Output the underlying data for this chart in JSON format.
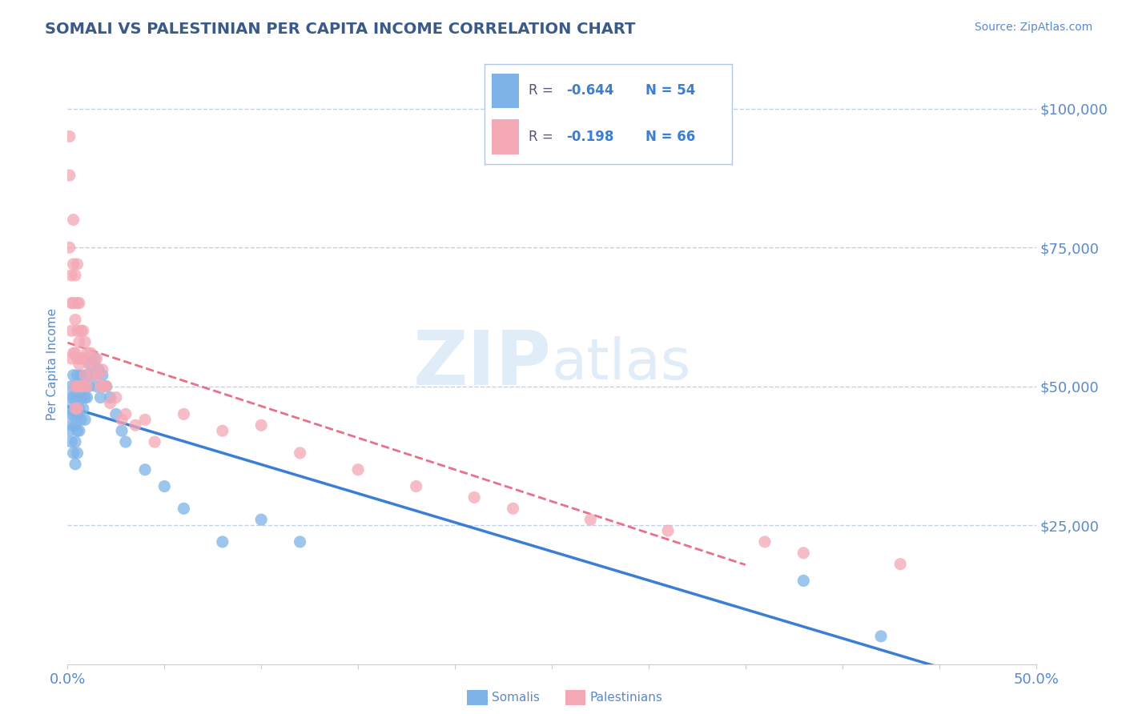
{
  "title": "SOMALI VS PALESTINIAN PER CAPITA INCOME CORRELATION CHART",
  "source_text": "Source: ZipAtlas.com",
  "ylabel": "Per Capita Income",
  "xlim": [
    0.0,
    0.5
  ],
  "ylim": [
    0,
    108000
  ],
  "yticks": [
    25000,
    50000,
    75000,
    100000
  ],
  "ytick_labels": [
    "$25,000",
    "$50,000",
    "$75,000",
    "$100,000"
  ],
  "xtick_labels_edge": [
    "0.0%",
    "50.0%"
  ],
  "somali_color": "#7eb3e8",
  "palestinian_color": "#f4a7b5",
  "somali_line_color": "#3a7fd5",
  "palestinian_line_color": "#e8708a",
  "title_color": "#3a5a8a",
  "axis_color": "#5a8ac8",
  "tick_color": "#5a8ac8",
  "grid_color": "#c0d0e8",
  "background_color": "#ffffff",
  "somali_x": [
    0.001,
    0.001,
    0.001,
    0.002,
    0.002,
    0.002,
    0.002,
    0.003,
    0.003,
    0.003,
    0.003,
    0.004,
    0.004,
    0.004,
    0.004,
    0.004,
    0.005,
    0.005,
    0.005,
    0.005,
    0.005,
    0.006,
    0.006,
    0.006,
    0.007,
    0.007,
    0.007,
    0.008,
    0.008,
    0.009,
    0.009,
    0.01,
    0.01,
    0.011,
    0.012,
    0.013,
    0.014,
    0.015,
    0.016,
    0.017,
    0.018,
    0.02,
    0.022,
    0.025,
    0.028,
    0.03,
    0.04,
    0.05,
    0.06,
    0.08,
    0.1,
    0.12,
    0.38,
    0.42
  ],
  "somali_y": [
    48000,
    45000,
    42000,
    50000,
    46000,
    43000,
    40000,
    52000,
    48000,
    45000,
    38000,
    50000,
    46000,
    43000,
    40000,
    36000,
    52000,
    48000,
    45000,
    42000,
    38000,
    50000,
    46000,
    42000,
    52000,
    48000,
    44000,
    50000,
    46000,
    48000,
    44000,
    52000,
    48000,
    50000,
    54000,
    52000,
    55000,
    50000,
    53000,
    48000,
    52000,
    50000,
    48000,
    45000,
    42000,
    40000,
    35000,
    32000,
    28000,
    22000,
    26000,
    22000,
    15000,
    5000
  ],
  "palestinian_x": [
    0.001,
    0.001,
    0.001,
    0.002,
    0.002,
    0.002,
    0.002,
    0.003,
    0.003,
    0.003,
    0.003,
    0.004,
    0.004,
    0.004,
    0.004,
    0.004,
    0.005,
    0.005,
    0.005,
    0.005,
    0.005,
    0.005,
    0.006,
    0.006,
    0.006,
    0.006,
    0.007,
    0.007,
    0.007,
    0.008,
    0.008,
    0.008,
    0.009,
    0.009,
    0.01,
    0.01,
    0.011,
    0.012,
    0.013,
    0.014,
    0.015,
    0.016,
    0.017,
    0.018,
    0.019,
    0.02,
    0.022,
    0.025,
    0.028,
    0.03,
    0.035,
    0.04,
    0.045,
    0.06,
    0.08,
    0.1,
    0.12,
    0.15,
    0.18,
    0.21,
    0.23,
    0.27,
    0.31,
    0.36,
    0.38,
    0.43
  ],
  "palestinian_y": [
    95000,
    88000,
    75000,
    70000,
    65000,
    60000,
    55000,
    80000,
    72000,
    65000,
    56000,
    70000,
    62000,
    56000,
    50000,
    46000,
    72000,
    65000,
    60000,
    55000,
    50000,
    46000,
    65000,
    58000,
    54000,
    50000,
    60000,
    55000,
    50000,
    60000,
    55000,
    50000,
    58000,
    52000,
    56000,
    50000,
    54000,
    56000,
    52000,
    54000,
    55000,
    52000,
    50000,
    53000,
    50000,
    50000,
    47000,
    48000,
    44000,
    45000,
    43000,
    44000,
    40000,
    45000,
    42000,
    43000,
    38000,
    35000,
    32000,
    30000,
    28000,
    26000,
    24000,
    22000,
    20000,
    18000
  ]
}
